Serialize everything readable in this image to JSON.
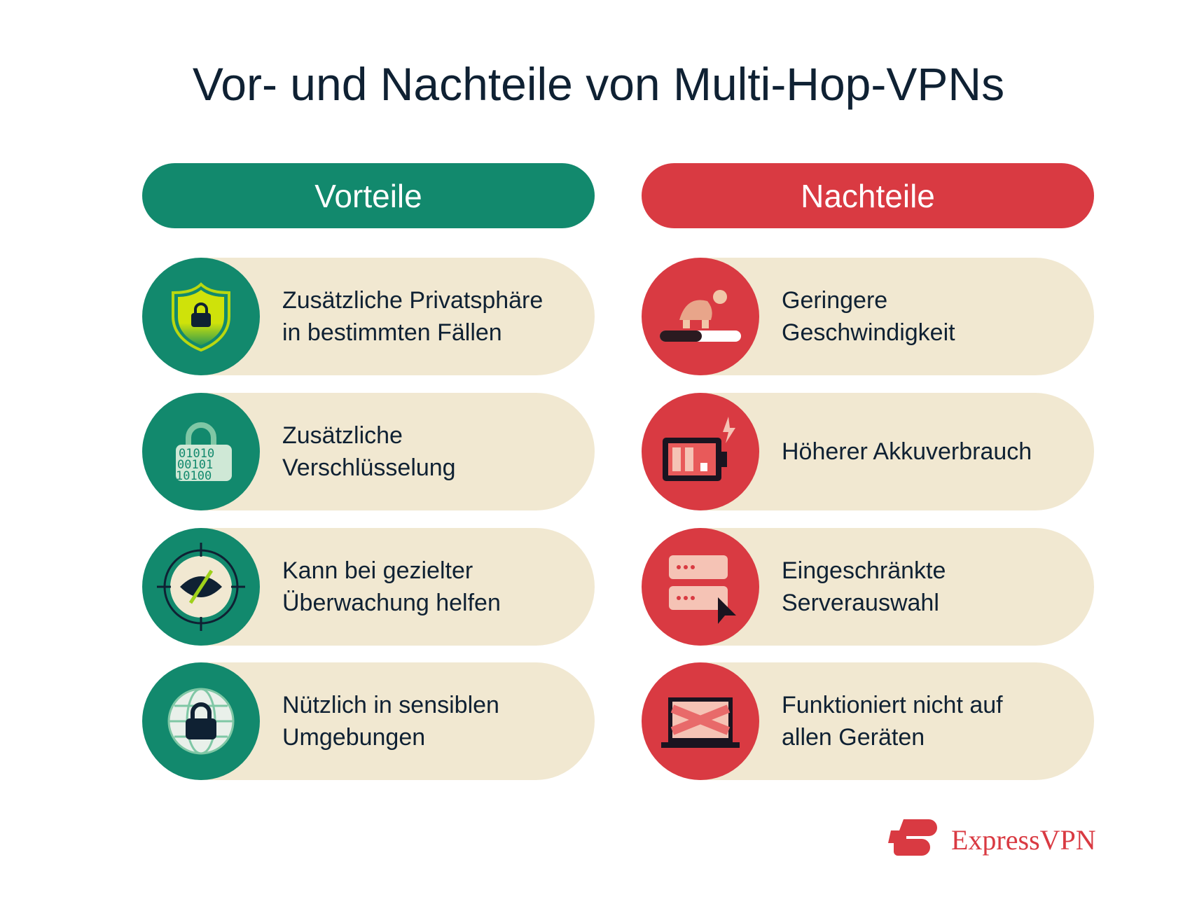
{
  "title": "Vor- und Nachteile von Multi-Hop-VPNs",
  "colors": {
    "pro": "#12896d",
    "con": "#d93a42",
    "card": "#f1e8d1",
    "text": "#0f2133"
  },
  "pros": {
    "header": "Vorteile",
    "items": [
      {
        "icon": "shield-lock-icon",
        "line1": "Zusätzliche Privatsphäre",
        "line2": "in bestimmten Fällen"
      },
      {
        "icon": "encrypted-lock-icon",
        "line1": "Zusätzliche",
        "line2": "Verschlüsselung"
      },
      {
        "icon": "hidden-eye-target-icon",
        "line1": "Kann bei gezielter",
        "line2": "Überwachung helfen"
      },
      {
        "icon": "globe-lock-icon",
        "line1": "Nützlich in sensiblen",
        "line2": "Umgebungen"
      }
    ]
  },
  "cons": {
    "header": "Nachteile",
    "items": [
      {
        "icon": "turtle-slow-icon",
        "line1": "Geringere",
        "line2": "Geschwindigkeit"
      },
      {
        "icon": "battery-drain-icon",
        "line1": "Höherer Akkuverbrauch",
        "line2": ""
      },
      {
        "icon": "server-select-icon",
        "line1": "Eingeschränkte",
        "line2": "Serverauswahl"
      },
      {
        "icon": "laptop-blocked-icon",
        "line1": "Funktioniert nicht auf",
        "line2": "allen Geräten"
      }
    ]
  },
  "logo": {
    "text": "ExpressVPN"
  }
}
